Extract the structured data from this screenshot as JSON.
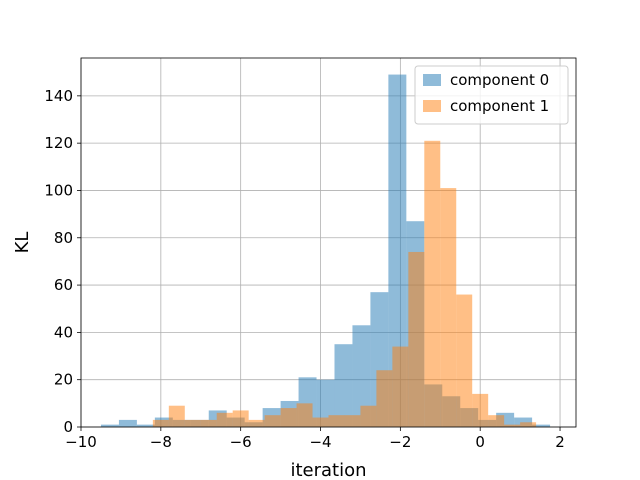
{
  "chart_data": {
    "type": "histogram",
    "title": "",
    "xlabel": "iteration",
    "ylabel": "KL",
    "xlim": [
      -10,
      2.4
    ],
    "ylim": [
      0,
      156
    ],
    "xticks": [
      -10,
      -8,
      -6,
      -4,
      -2,
      0,
      2
    ],
    "xtick_labels": [
      "−10",
      "−8",
      "−6",
      "−4",
      "−2",
      "0",
      "2"
    ],
    "yticks": [
      0,
      20,
      40,
      60,
      80,
      100,
      120,
      140
    ],
    "ytick_labels": [
      "0",
      "20",
      "40",
      "60",
      "80",
      "100",
      "120",
      "140"
    ],
    "grid": true,
    "legend_position": "top-right",
    "series": [
      {
        "name": "component 0",
        "color": "#1f77b4",
        "alpha": 0.5,
        "bin_edges": [
          -9.5,
          -9.05,
          -8.6,
          -8.15,
          -7.7,
          -7.25,
          -6.8,
          -6.35,
          -5.9,
          -5.45,
          -5.0,
          -4.55,
          -4.1,
          -3.65,
          -3.2,
          -2.75,
          -2.3,
          -1.85,
          -1.4,
          -0.95,
          -0.5,
          -0.05,
          0.4,
          0.85,
          1.3,
          1.75
        ],
        "counts": [
          1,
          3,
          1,
          4,
          3,
          3,
          7,
          4,
          2,
          8,
          11,
          21,
          20,
          35,
          43,
          57,
          149,
          87,
          18,
          13,
          8,
          3,
          6,
          4,
          1
        ]
      },
      {
        "name": "component 1",
        "color": "#ff7f0e",
        "alpha": 0.5,
        "bin_edges": [
          -8.2,
          -7.8,
          -7.4,
          -7.0,
          -6.6,
          -6.2,
          -5.8,
          -5.4,
          -5.0,
          -4.6,
          -4.2,
          -3.8,
          -3.4,
          -3.0,
          -2.6,
          -2.2,
          -1.8,
          -1.4,
          -1.0,
          -0.6,
          -0.2,
          0.2,
          0.6,
          1.0,
          1.4
        ],
        "counts": [
          3,
          9,
          3,
          3,
          6,
          7,
          3,
          5,
          8,
          10,
          4,
          5,
          5,
          9,
          24,
          34,
          74,
          121,
          101,
          56,
          14,
          5,
          1,
          2
        ]
      }
    ]
  }
}
